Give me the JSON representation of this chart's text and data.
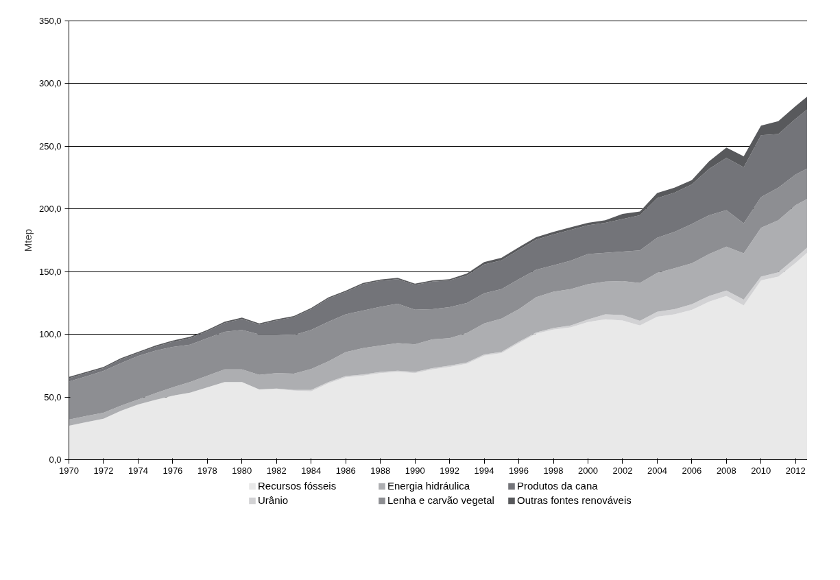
{
  "chart_data": {
    "type": "area",
    "stacked": true,
    "ylabel": "Mtep",
    "x": [
      1970,
      1971,
      1972,
      1973,
      1974,
      1975,
      1976,
      1977,
      1978,
      1979,
      1980,
      1981,
      1982,
      1983,
      1984,
      1985,
      1986,
      1987,
      1988,
      1989,
      1990,
      1991,
      1992,
      1993,
      1994,
      1995,
      1996,
      1997,
      1998,
      1999,
      2000,
      2001,
      2002,
      2003,
      2004,
      2005,
      2006,
      2007,
      2008,
      2009,
      2010,
      2011,
      2012,
      2013
    ],
    "series": [
      {
        "name": "Recursos fósseis",
        "color": "#e9e9e9",
        "values": [
          27.1,
          30.0,
          32.7,
          39,
          44,
          47.7,
          51,
          53.5,
          57.7,
          62,
          62,
          56,
          56.4,
          55.1,
          54.6,
          61,
          65.7,
          67,
          69,
          70,
          69,
          72,
          74,
          76.5,
          83,
          85,
          93,
          100.5,
          103.8,
          105.5,
          109.8,
          112,
          111,
          107,
          114,
          116,
          119.5,
          126,
          130.5,
          123,
          143,
          146,
          157,
          169
        ]
      },
      {
        "name": "Urânio",
        "color": "#d2d2d4",
        "values": [
          0,
          0,
          0,
          0,
          0,
          0,
          0,
          0,
          0,
          0,
          0,
          0,
          0.3,
          0.5,
          1,
          1,
          1,
          1,
          1,
          1,
          1,
          1,
          1,
          1,
          1,
          1,
          1,
          1,
          1.2,
          1.5,
          2.1,
          4,
          4.4,
          3.8,
          4,
          4,
          4.5,
          4.6,
          4.5,
          4.7,
          3,
          3.4,
          4,
          4.3
        ]
      },
      {
        "name": "Energia hidráulica",
        "color": "#adaeb1",
        "values": [
          4.9,
          4.8,
          4.8,
          4,
          4,
          5.3,
          6.7,
          8.5,
          9.3,
          10,
          10,
          11.7,
          12.3,
          13.1,
          16.7,
          16.5,
          19.1,
          21,
          21,
          22,
          22,
          23,
          22,
          23.5,
          24.7,
          26.5,
          26,
          28.1,
          29,
          29,
          28.1,
          26,
          27.1,
          30.2,
          31,
          32.7,
          32.7,
          33.4,
          35,
          36.9,
          39,
          41.6,
          42,
          37.1
        ]
      },
      {
        "name": "Lenha e carvão vegetal",
        "color": "#8d8e92",
        "values": [
          30.3,
          31.7,
          33.3,
          34,
          34.7,
          34,
          32.3,
          29.7,
          30,
          30,
          31.5,
          32.3,
          31,
          30.7,
          31.2,
          31.5,
          30.2,
          30,
          31,
          31.4,
          27.6,
          24,
          24.7,
          24,
          24,
          23.5,
          24,
          21.9,
          21,
          22.7,
          24,
          23,
          23.5,
          26,
          28,
          29,
          31.3,
          31,
          29,
          23.9,
          24.4,
          26,
          24.5,
          24.2
        ]
      },
      {
        "name": "Produtos da cana",
        "color": "#737479",
        "values": [
          2.7,
          2.5,
          2.2,
          3,
          2.3,
          3,
          4,
          5.3,
          5.5,
          7,
          8.8,
          7.7,
          11,
          14.2,
          16.5,
          18.5,
          17.8,
          21,
          20.7,
          19.6,
          19.8,
          22,
          21.3,
          22,
          23,
          23,
          23.4,
          24,
          24.7,
          24.7,
          23,
          24,
          26,
          28,
          31.7,
          31.3,
          31.6,
          37,
          41.8,
          44.8,
          49.4,
          42.8,
          44.5,
          48.4
        ]
      },
      {
        "name": "Outras fontes renováveis",
        "color": "#58595c",
        "values": [
          1,
          1,
          1,
          1,
          1,
          1,
          1,
          1,
          1,
          1,
          1,
          1,
          1,
          1,
          1,
          1,
          1,
          1,
          1,
          1,
          1,
          1,
          1,
          1.5,
          2,
          2,
          2,
          2,
          2,
          2,
          2,
          2,
          4,
          3,
          4.1,
          4,
          3.4,
          6,
          8.2,
          8.7,
          7.7,
          10.2,
          10,
          10.5
        ]
      }
    ],
    "xlim": [
      1970,
      2013
    ],
    "xticks": [
      1970,
      1972,
      1974,
      1976,
      1978,
      1980,
      1982,
      1984,
      1986,
      1988,
      1990,
      1992,
      1994,
      1996,
      1998,
      2000,
      2002,
      2004,
      2006,
      2008,
      2010,
      2012
    ],
    "ylim": [
      0,
      350
    ],
    "yticks": [
      {
        "value": 0,
        "label": "0,0"
      },
      {
        "value": 50,
        "label": "50,0"
      },
      {
        "value": 100,
        "label": "100,0"
      },
      {
        "value": 150,
        "label": "150,0"
      },
      {
        "value": 200,
        "label": "200,0"
      },
      {
        "value": 250,
        "label": "250,0"
      },
      {
        "value": 300,
        "label": "300,0"
      },
      {
        "value": 350,
        "label": "350,0"
      }
    ],
    "grid": "y",
    "legend": "bottom"
  }
}
